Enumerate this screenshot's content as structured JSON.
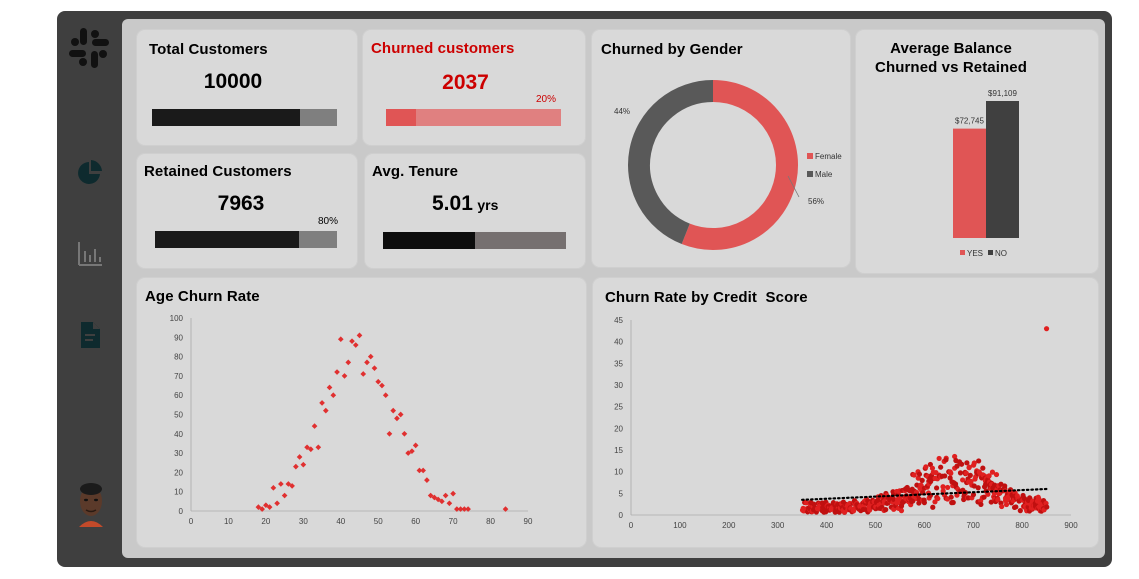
{
  "colors": {
    "accent_red": "#e05555",
    "dark": "#1a1a1a",
    "gray": "#7f7f7f",
    "male_gray": "#595959",
    "churn_red": "#cc0000"
  },
  "sidebar": {
    "icons": [
      "slack-logo-icon",
      "pie-chart-icon",
      "bar-chart-icon",
      "document-icon",
      "user-avatar"
    ]
  },
  "kpis": {
    "total": {
      "label": "Total Customers",
      "value": "10000",
      "fill": 0.8
    },
    "churned": {
      "label": "Churned customers",
      "value": "2037",
      "pct": "20%",
      "fill": 0.2
    },
    "retained": {
      "label": "Retained Customers",
      "value": "7963",
      "pct": "80%",
      "fill": 0.8
    },
    "tenure": {
      "label": "Avg. Tenure",
      "value": "5.01",
      "unit": "yrs",
      "fill": 0.5
    }
  },
  "chart_data": [
    {
      "type": "pie",
      "title": "Churned by Gender",
      "labels": [
        "Female",
        "Male"
      ],
      "values": [
        56,
        44
      ],
      "value_labels": [
        "56%",
        "44%"
      ],
      "colors": [
        "#e05555",
        "#595959"
      ],
      "legend": "right"
    },
    {
      "type": "bar",
      "title": "Average Balance Churned vs Retained",
      "title_lines": [
        "Average Balance",
        "Churned vs Retained"
      ],
      "categories": [
        "YES",
        "NO"
      ],
      "values": [
        72745,
        91109
      ],
      "value_labels": [
        "$72,745",
        "$91,109"
      ],
      "colors": [
        "#e05555",
        "#404040"
      ],
      "legend": "bottom"
    },
    {
      "type": "scatter",
      "title": "Age Churn Rate",
      "xlim": [
        0,
        90
      ],
      "ylim": [
        0,
        100
      ],
      "xticks": [
        "0",
        "10",
        "20",
        "30",
        "40",
        "50",
        "60",
        "70",
        "80",
        "90"
      ],
      "yticks": [
        "0",
        "10",
        "20",
        "30",
        "40",
        "50",
        "60",
        "70",
        "80",
        "90",
        "100"
      ],
      "x": [
        18,
        19,
        20,
        21,
        22,
        23,
        24,
        25,
        26,
        27,
        28,
        29,
        30,
        31,
        32,
        33,
        34,
        35,
        36,
        37,
        38,
        39,
        40,
        41,
        42,
        43,
        44,
        45,
        46,
        47,
        48,
        49,
        50,
        51,
        52,
        53,
        54,
        55,
        56,
        57,
        58,
        59,
        60,
        61,
        62,
        63,
        64,
        65,
        66,
        67,
        68,
        69,
        70,
        71,
        72,
        73,
        74,
        84
      ],
      "y": [
        2,
        1,
        3,
        2,
        12,
        4,
        14,
        8,
        14,
        13,
        23,
        28,
        24,
        33,
        32,
        44,
        33,
        56,
        52,
        64,
        60,
        72,
        89,
        70,
        77,
        88,
        86,
        91,
        71,
        77,
        80,
        74,
        67,
        65,
        60,
        40,
        52,
        48,
        50,
        40,
        30,
        31,
        34,
        21,
        21,
        16,
        8,
        7,
        6,
        5,
        8,
        4,
        9,
        1,
        1,
        1,
        1,
        1
      ]
    },
    {
      "type": "scatter",
      "title": "Churn Rate by Credit  Score",
      "xlim": [
        0,
        900
      ],
      "ylim": [
        0,
        45
      ],
      "xticks": [
        "0",
        "100",
        "200",
        "300",
        "400",
        "500",
        "600",
        "700",
        "800",
        "900"
      ],
      "yticks": [
        "0",
        "5",
        "10",
        "15",
        "20",
        "25",
        "30",
        "35",
        "40",
        "45"
      ],
      "trendline": {
        "x": [
          350,
          850
        ],
        "y": [
          3.5,
          6
        ]
      },
      "outlier": {
        "x": 850,
        "y": 43
      }
    }
  ]
}
